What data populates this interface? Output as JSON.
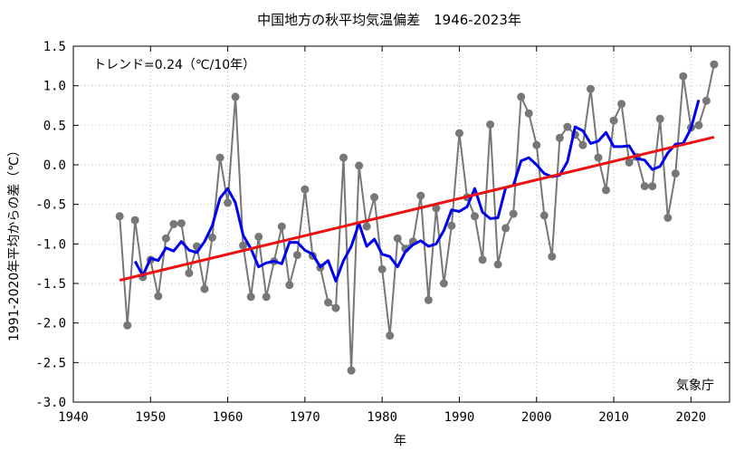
{
  "chart_data": {
    "type": "line",
    "title": "中国地方の秋平均気温偏差　1946-2023年",
    "xlabel": "年",
    "ylabel": "1991-2020年平均からの差（℃）",
    "annotation": "トレンド=0.24（℃/10年）",
    "credit": "気象庁",
    "xlim": [
      1940,
      2025
    ],
    "ylim": [
      -3.0,
      1.5
    ],
    "xticks": [
      "1940",
      "1950",
      "1960",
      "1970",
      "1980",
      "1990",
      "2000",
      "2010",
      "2020"
    ],
    "yticks": [
      "1.5",
      "1.0",
      "0.5",
      "0.0",
      "-0.5",
      "-1.0",
      "-1.5",
      "-2.0",
      "-2.5",
      "-3.0"
    ],
    "grid": true,
    "colors": {
      "annual": "#777777",
      "moving_avg": "#0000ee",
      "trend": "#ee1111"
    },
    "series": [
      {
        "role": "annual",
        "x": [
          1946,
          1947,
          1948,
          1949,
          1950,
          1951,
          1952,
          1953,
          1954,
          1955,
          1956,
          1957,
          1958,
          1959,
          1960,
          1961,
          1962,
          1963,
          1964,
          1965,
          1966,
          1967,
          1968,
          1969,
          1970,
          1971,
          1972,
          1973,
          1974,
          1975,
          1976,
          1977,
          1978,
          1979,
          1980,
          1981,
          1982,
          1983,
          1984,
          1985,
          1986,
          1987,
          1988,
          1989,
          1990,
          1991,
          1992,
          1993,
          1994,
          1995,
          1996,
          1997,
          1998,
          1999,
          2000,
          2001,
          2002,
          2003,
          2004,
          2005,
          2006,
          2007,
          2008,
          2009,
          2010,
          2011,
          2012,
          2013,
          2014,
          2015,
          2016,
          2017,
          2018,
          2019,
          2020,
          2021,
          2022,
          2023
        ],
        "values": [
          -0.65,
          -2.03,
          -0.7,
          -1.42,
          -1.2,
          -1.66,
          -0.93,
          -0.75,
          -0.74,
          -1.37,
          -1.03,
          -1.57,
          -0.92,
          0.09,
          -0.48,
          0.86,
          -1.02,
          -1.67,
          -0.91,
          -1.67,
          -1.22,
          -0.78,
          -1.52,
          -1.14,
          -0.31,
          -1.15,
          -1.3,
          -1.74,
          -1.81,
          0.09,
          -2.6,
          -0.01,
          -0.78,
          -0.41,
          -1.32,
          -2.16,
          -0.93,
          -1.06,
          -0.97,
          -0.39,
          -1.71,
          -0.55,
          -1.5,
          -0.77,
          0.4,
          -0.41,
          -0.65,
          -1.2,
          0.51,
          -1.26,
          -0.8,
          -0.62,
          0.86,
          0.65,
          0.25,
          -0.64,
          -1.16,
          0.34,
          0.48,
          0.38,
          0.25,
          0.96,
          0.09,
          -0.32,
          0.56,
          0.77,
          0.03,
          0.1,
          -0.27,
          -0.27,
          0.58,
          -0.67,
          -0.11,
          1.12,
          0.47,
          0.5,
          0.81,
          1.27
        ]
      },
      {
        "role": "moving_avg",
        "x": [
          1948,
          1949,
          1950,
          1951,
          1952,
          1953,
          1954,
          1955,
          1956,
          1957,
          1958,
          1959,
          1960,
          1961,
          1962,
          1963,
          1964,
          1965,
          1966,
          1967,
          1968,
          1969,
          1970,
          1971,
          1972,
          1973,
          1974,
          1975,
          1976,
          1977,
          1978,
          1979,
          1980,
          1981,
          1982,
          1983,
          1984,
          1985,
          1986,
          1987,
          1988,
          1989,
          1990,
          1991,
          1992,
          1993,
          1994,
          1995,
          1996,
          1997,
          1998,
          1999,
          2000,
          2001,
          2002,
          2003,
          2004,
          2005,
          2006,
          2007,
          2008,
          2009,
          2010,
          2011,
          2012,
          2013,
          2014,
          2015,
          2016,
          2017,
          2018,
          2019,
          2020,
          2021
        ],
        "values": [
          -1.22,
          -1.4,
          -1.18,
          -1.21,
          -1.05,
          -1.09,
          -0.97,
          -1.08,
          -1.11,
          -0.97,
          -0.77,
          -0.42,
          -0.3,
          -0.48,
          -0.89,
          -1.06,
          -1.29,
          -1.24,
          -1.22,
          -1.25,
          -0.98,
          -0.98,
          -1.08,
          -1.13,
          -1.29,
          -1.21,
          -1.47,
          -1.21,
          -1.03,
          -0.74,
          -1.03,
          -0.94,
          -1.13,
          -1.16,
          -1.29,
          -1.1,
          -1.01,
          -0.96,
          -1.03,
          -1.0,
          -0.83,
          -0.57,
          -0.59,
          -0.53,
          -0.3,
          -0.6,
          -0.68,
          -0.67,
          -0.29,
          -0.26,
          0.05,
          0.09,
          0.0,
          -0.11,
          -0.15,
          -0.13,
          0.04,
          0.48,
          0.43,
          0.27,
          0.3,
          0.41,
          0.23,
          0.23,
          0.24,
          0.08,
          0.06,
          -0.06,
          -0.02,
          0.15,
          0.26,
          0.27,
          0.46,
          0.82
        ]
      },
      {
        "role": "trend",
        "x": [
          1946,
          2023
        ],
        "values": [
          -1.46,
          0.35
        ]
      }
    ]
  }
}
